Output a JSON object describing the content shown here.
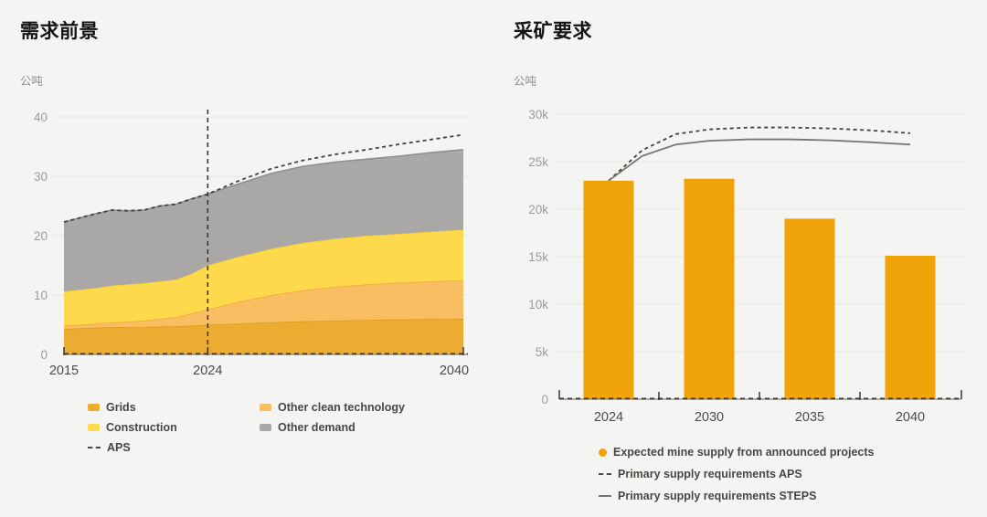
{
  "page": {
    "background": "#F4F4F2"
  },
  "chart_data": [
    {
      "id": "demand-outlook",
      "type": "area",
      "stacked": true,
      "title": "需求前景",
      "ylabel": "公吨",
      "x": [
        2015,
        2016,
        2017,
        2018,
        2019,
        2020,
        2021,
        2022,
        2023,
        2024,
        2026,
        2028,
        2030,
        2032,
        2034,
        2036,
        2038,
        2040
      ],
      "series": [
        {
          "name": "Grids",
          "color": "#EBAC31",
          "stroke": "#DB9A17",
          "values": [
            4.3,
            4.4,
            4.5,
            4.6,
            4.55,
            4.6,
            4.7,
            4.75,
            4.85,
            5.0,
            5.2,
            5.4,
            5.6,
            5.7,
            5.8,
            5.9,
            5.95,
            6.0
          ]
        },
        {
          "name": "Other clean technology",
          "color": "#F9BE62",
          "stroke": "#F1A640",
          "values": [
            0.6,
            0.6,
            0.7,
            0.8,
            0.95,
            1.1,
            1.3,
            1.55,
            2.05,
            2.6,
            3.7,
            4.6,
            5.2,
            5.7,
            6.0,
            6.2,
            6.35,
            6.5
          ]
        },
        {
          "name": "Construction",
          "color": "#FED94B",
          "stroke": "#F3CB36",
          "values": [
            5.7,
            5.9,
            6.0,
            6.2,
            6.3,
            6.3,
            6.3,
            6.3,
            6.7,
            7.4,
            7.6,
            7.8,
            8.0,
            8.1,
            8.2,
            8.2,
            8.4,
            8.5
          ]
        },
        {
          "name": "Other demand",
          "color": "#A9A8A6",
          "stroke": "#8F8E8C",
          "values": [
            11.7,
            12.1,
            12.5,
            12.7,
            12.4,
            12.3,
            12.7,
            12.7,
            12.6,
            12.0,
            12.3,
            12.7,
            12.9,
            12.9,
            12.9,
            13.1,
            13.3,
            13.5
          ]
        }
      ],
      "line": {
        "name": "APS",
        "style": "dashed",
        "color": "#45423E",
        "x": [
          2015,
          2016,
          2017,
          2018,
          2019,
          2020,
          2021,
          2022,
          2023,
          2024,
          2026,
          2028,
          2030,
          2032,
          2034,
          2036,
          2038,
          2040
        ],
        "values": [
          22.3,
          23.0,
          23.7,
          24.3,
          24.2,
          24.3,
          25.0,
          25.3,
          26.2,
          27.0,
          29.3,
          31.3,
          32.7,
          33.7,
          34.5,
          35.4,
          36.2,
          37.0
        ]
      },
      "annotation_line_x": 2024,
      "xlim": [
        2015,
        2040
      ],
      "ylim": [
        0,
        40
      ],
      "x_ticks": [
        2015,
        2024,
        2040
      ],
      "x_tick_labels": [
        "2015",
        "2024",
        "2040"
      ],
      "y_ticks": [
        0,
        10,
        20,
        30,
        40
      ],
      "y_tick_labels": [
        "0",
        "10",
        "20",
        "30",
        "40"
      ],
      "grid": true,
      "legend": [
        {
          "label": "Grids",
          "marker": "swatch",
          "color": "#EBAC31"
        },
        {
          "label": "Other clean technology",
          "marker": "swatch",
          "color": "#F9BE62"
        },
        {
          "label": "Construction",
          "marker": "swatch",
          "color": "#FED94B"
        },
        {
          "label": "Other demand",
          "marker": "swatch",
          "color": "#A9A8A6"
        },
        {
          "label": "APS",
          "marker": "dashed",
          "color": "#4B4B48"
        }
      ]
    },
    {
      "id": "mining-requirements",
      "type": "bar",
      "title": "采矿要求",
      "ylabel": "公吨",
      "categories": [
        "2024",
        "2030",
        "2035",
        "2040"
      ],
      "category_years": [
        2024,
        2030,
        2035,
        2040
      ],
      "values": [
        23000,
        23200,
        19000,
        15100
      ],
      "bar_color": "#F1A30A",
      "lines": [
        {
          "name": "Primary supply requirements APS",
          "style": "dashed",
          "color": "#45423E",
          "x": [
            2024,
            2026,
            2028,
            2030,
            2032,
            2034,
            2036,
            2038,
            2040
          ],
          "values": [
            23000,
            26200,
            27900,
            28400,
            28600,
            28600,
            28500,
            28300,
            28000
          ]
        },
        {
          "name": "Primary supply requirements STEPS",
          "style": "solid",
          "color": "#767571",
          "x": [
            2024,
            2026,
            2028,
            2030,
            2032,
            2034,
            2036,
            2038,
            2040
          ],
          "values": [
            23000,
            25600,
            26800,
            27200,
            27350,
            27350,
            27250,
            27050,
            26800
          ]
        }
      ],
      "ylim": [
        0,
        30000
      ],
      "y_ticks": [
        0,
        5000,
        10000,
        15000,
        20000,
        25000,
        30000
      ],
      "y_tick_labels": [
        "0",
        "5k",
        "10k",
        "15k",
        "20k",
        "25k",
        "30k"
      ],
      "grid": true,
      "legend": [
        {
          "label": "Expected mine supply from announced projects",
          "marker": "dot",
          "color": "#F1A30A"
        },
        {
          "label": "Primary supply requirements APS",
          "marker": "dashed",
          "color": "#4B4B48"
        },
        {
          "label": "Primary supply requirements STEPS",
          "marker": "solid",
          "color": "#767571"
        }
      ]
    }
  ]
}
